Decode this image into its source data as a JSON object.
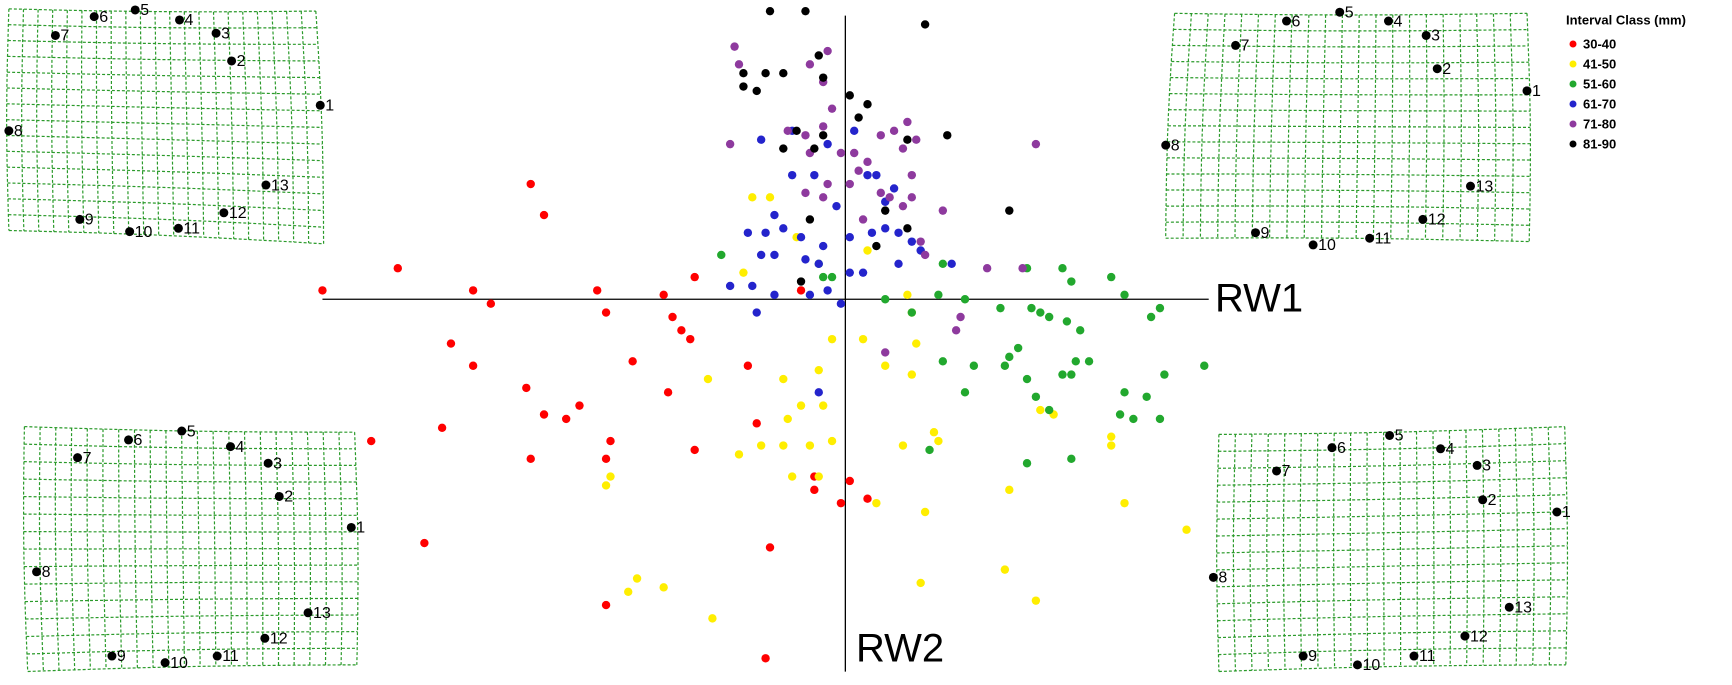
{
  "chart_data": {
    "type": "scatter",
    "xlabel": "RW1",
    "ylabel": "RW2",
    "legend_title": "Interval Class (mm)",
    "legend": "top-right",
    "xlim": [
      -0.12,
      0.085
    ],
    "ylim": [
      -0.085,
      0.067
    ],
    "landmark_labels": [
      "1",
      "2",
      "3",
      "4",
      "5",
      "6",
      "7",
      "8",
      "9",
      "10",
      "11",
      "12",
      "13"
    ],
    "series": [
      {
        "name": "30-40",
        "color": "#ff0000",
        "x": [
          -0.118,
          -0.101,
          -0.071,
          -0.068,
          -0.084,
          -0.08,
          -0.056,
          -0.034,
          -0.041,
          -0.054,
          -0.039,
          -0.035,
          -0.089,
          -0.084,
          -0.048,
          -0.022,
          -0.04,
          -0.072,
          -0.068,
          -0.063,
          -0.06,
          -0.091,
          -0.071,
          -0.053,
          -0.054,
          -0.034,
          -0.107,
          -0.095,
          -0.054,
          -0.017,
          -0.018,
          -0.007,
          -0.007,
          -0.001,
          0.001,
          0.005,
          -0.02,
          -0.037,
          -0.01
        ],
        "y": [
          0.002,
          0.007,
          0.026,
          0.019,
          0.002,
          -0.001,
          0.002,
          0.005,
          0.001,
          -0.003,
          -0.004,
          -0.009,
          -0.01,
          -0.015,
          -0.014,
          -0.015,
          -0.021,
          -0.02,
          -0.026,
          -0.027,
          -0.024,
          -0.029,
          -0.036,
          -0.032,
          -0.036,
          -0.034,
          -0.032,
          -0.055,
          -0.069,
          -0.056,
          -0.081,
          -0.04,
          -0.043,
          -0.046,
          -0.041,
          -0.045,
          -0.028,
          -0.007,
          0.002
        ]
      },
      {
        "name": "41-50",
        "color": "#ffee00",
        "x": [
          -0.021,
          -0.017,
          -0.023,
          -0.011,
          0.005,
          0.014,
          0.015,
          0.004,
          0.016,
          -0.003,
          -0.006,
          0.009,
          0.015,
          -0.031,
          -0.014,
          -0.01,
          -0.013,
          -0.005,
          -0.003,
          -0.008,
          -0.024,
          -0.019,
          -0.014,
          0.013,
          0.02,
          0.021,
          0.06,
          0.06,
          0.044,
          0.047,
          -0.012,
          -0.006,
          0.007,
          0.018,
          0.037,
          0.063,
          0.077,
          -0.054,
          -0.053,
          -0.047,
          -0.049,
          -0.041,
          -0.03,
          0.017,
          0.036,
          0.043
        ],
        "y": [
          0.023,
          0.023,
          0.006,
          0.014,
          0.011,
          0.001,
          -0.003,
          -0.009,
          -0.01,
          -0.009,
          -0.016,
          -0.015,
          -0.017,
          -0.018,
          -0.018,
          -0.024,
          -0.027,
          -0.024,
          -0.032,
          -0.033,
          -0.035,
          -0.033,
          -0.033,
          -0.033,
          -0.03,
          -0.032,
          -0.031,
          -0.033,
          -0.025,
          -0.026,
          -0.04,
          -0.04,
          -0.046,
          -0.048,
          -0.043,
          -0.046,
          -0.052,
          -0.042,
          -0.04,
          -0.063,
          -0.066,
          -0.065,
          -0.072,
          -0.064,
          -0.061,
          -0.068
        ]
      },
      {
        "name": "51-60",
        "color": "#22a82e",
        "x": [
          -0.028,
          -0.006,
          -0.005,
          -0.003,
          0.009,
          0.015,
          0.021,
          0.027,
          0.022,
          0.035,
          0.041,
          0.049,
          0.051,
          0.06,
          0.063,
          0.071,
          0.069,
          0.042,
          0.044,
          0.046,
          0.05,
          0.053,
          0.052,
          0.055,
          0.051,
          0.049,
          0.039,
          0.037,
          0.041,
          0.043,
          0.036,
          0.029,
          0.022,
          0.027,
          0.063,
          0.068,
          0.072,
          0.081,
          0.062,
          0.065,
          0.071,
          0.046,
          0.041,
          0.051,
          0.019
        ],
        "y": [
          0.01,
          0.008,
          0.005,
          0.005,
          0.0,
          -0.003,
          0.001,
          0.0,
          0.008,
          -0.002,
          0.007,
          0.007,
          0.004,
          0.005,
          0.001,
          -0.002,
          -0.004,
          -0.002,
          -0.003,
          -0.004,
          -0.005,
          -0.007,
          -0.014,
          -0.014,
          -0.017,
          -0.017,
          -0.011,
          -0.013,
          -0.018,
          -0.022,
          -0.015,
          -0.015,
          -0.014,
          -0.021,
          -0.021,
          -0.022,
          -0.017,
          -0.015,
          -0.026,
          -0.027,
          -0.027,
          -0.025,
          -0.037,
          -0.036,
          -0.034
        ]
      },
      {
        "name": "61-70",
        "color": "#2424cc",
        "x": [
          -0.019,
          -0.012,
          0.002,
          -0.004,
          -0.012,
          -0.007,
          0.005,
          0.007,
          0.011,
          0.009,
          -0.002,
          -0.016,
          -0.022,
          -0.018,
          -0.014,
          -0.01,
          -0.005,
          0.001,
          0.006,
          0.009,
          0.012,
          0.015,
          0.017,
          0.024,
          -0.019,
          -0.016,
          -0.009,
          -0.006,
          0.001,
          0.004,
          0.012,
          -0.026,
          -0.021,
          -0.016,
          -0.008,
          -0.004,
          -0.001,
          -0.02,
          -0.006
        ],
        "y": [
          0.036,
          0.038,
          0.038,
          0.035,
          0.028,
          0.028,
          0.028,
          0.028,
          0.025,
          0.022,
          0.021,
          0.019,
          0.015,
          0.015,
          0.016,
          0.014,
          0.012,
          0.014,
          0.015,
          0.016,
          0.015,
          0.013,
          0.011,
          0.008,
          0.01,
          0.01,
          0.009,
          0.008,
          0.006,
          0.006,
          0.008,
          0.003,
          0.003,
          0.001,
          0.001,
          0.002,
          -0.001,
          -0.003,
          -0.021
        ]
      },
      {
        "name": "71-80",
        "color": "#8e3a9e",
        "x": [
          -0.025,
          -0.024,
          -0.004,
          -0.005,
          -0.008,
          -0.003,
          -0.026,
          -0.013,
          -0.009,
          -0.005,
          0.002,
          -0.008,
          -0.001,
          0.008,
          0.011,
          0.014,
          0.016,
          0.013,
          0.015,
          0.005,
          0.003,
          0.001,
          -0.005,
          -0.009,
          -0.004,
          0.008,
          0.01,
          0.013,
          0.022,
          0.043,
          0.017,
          0.004,
          0.015,
          0.018,
          0.04,
          0.032,
          0.026,
          0.025,
          0.009
        ],
        "y": [
          0.057,
          0.053,
          0.056,
          0.049,
          0.053,
          0.043,
          0.035,
          0.038,
          0.037,
          0.039,
          0.033,
          0.033,
          0.033,
          0.037,
          0.038,
          0.04,
          0.036,
          0.034,
          0.028,
          0.031,
          0.029,
          0.026,
          0.023,
          0.024,
          0.026,
          0.024,
          0.023,
          0.021,
          0.02,
          0.035,
          0.013,
          0.018,
          0.023,
          0.01,
          0.007,
          0.007,
          -0.004,
          -0.007,
          -0.012
        ]
      },
      {
        "name": "81-90",
        "color": "#000000",
        "x": [
          -0.017,
          -0.009,
          0.018,
          -0.006,
          -0.018,
          -0.023,
          -0.023,
          -0.02,
          -0.014,
          -0.005,
          0.001,
          0.005,
          -0.011,
          -0.007,
          -0.005,
          -0.014,
          0.003,
          0.014,
          0.023,
          0.009,
          0.014,
          0.007,
          0.037,
          -0.008,
          -0.01
        ],
        "y": [
          0.065,
          0.065,
          0.062,
          0.055,
          0.051,
          0.051,
          0.048,
          0.047,
          0.051,
          0.05,
          0.046,
          0.044,
          0.038,
          0.034,
          0.037,
          0.034,
          0.041,
          0.036,
          0.037,
          0.02,
          0.016,
          0.012,
          0.02,
          0.018,
          0.004
        ]
      }
    ]
  }
}
